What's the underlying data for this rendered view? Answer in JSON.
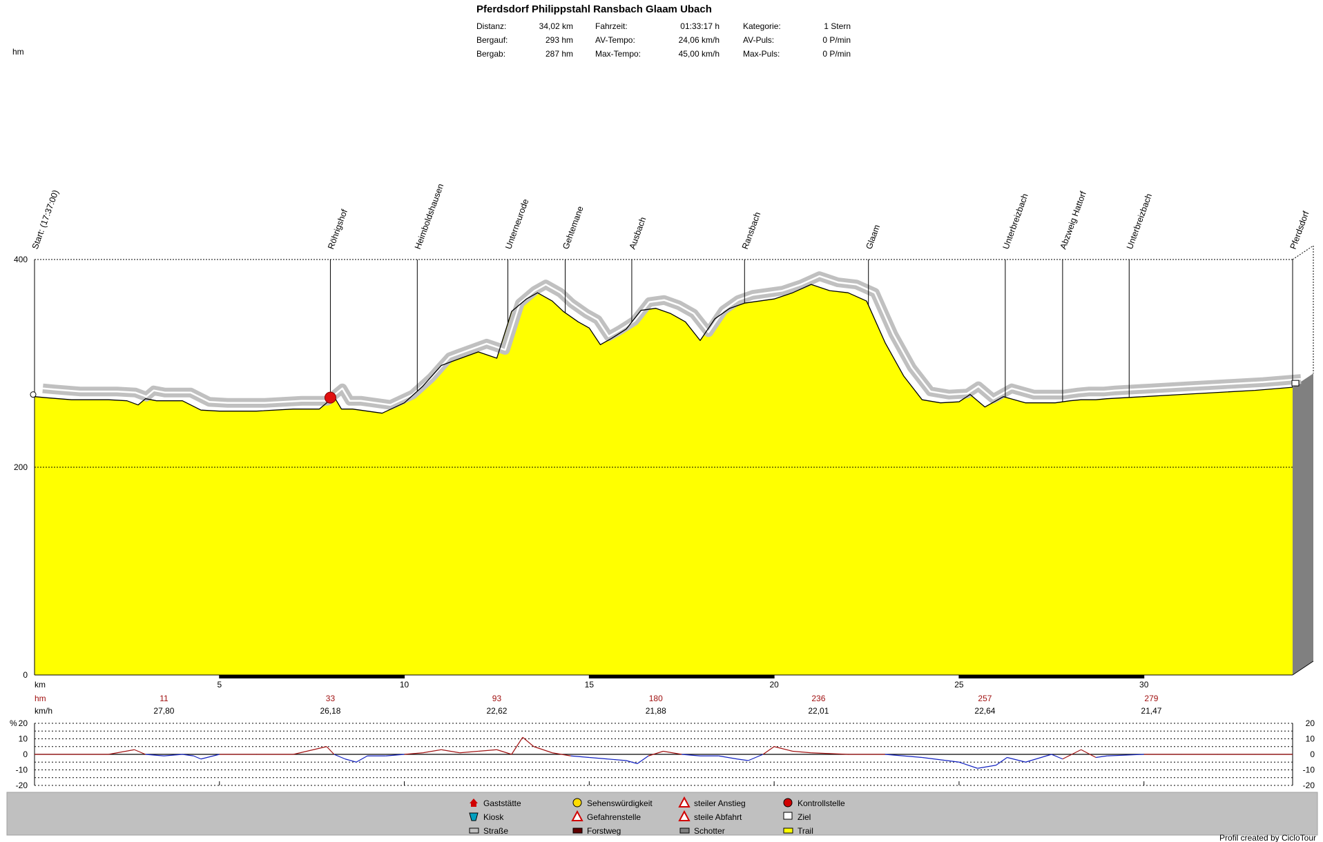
{
  "header": {
    "title": "Pferdsdorf Philippstahl Ransbach Glaam Ubach",
    "stats": [
      [
        "Distanz:",
        "34,02 km",
        "Fahrzeit:",
        "01:33:17 h",
        "Kategorie:",
        "1 Stern"
      ],
      [
        "Bergauf:",
        "293 hm",
        "AV-Tempo:",
        "24,06 km/h",
        "AV-Puls:",
        "0 P/min"
      ],
      [
        "Bergab:",
        "287 hm",
        "Max-Tempo:",
        "45,00 km/h",
        "Max-Puls:",
        "0 P/min"
      ]
    ]
  },
  "footer": {
    "credit": "Profil created by CicloTour"
  },
  "legend": [
    {
      "icon": "house-icon",
      "label": "Gaststätte",
      "color": "#d00000"
    },
    {
      "icon": "smiley-icon",
      "label": "Sehenswürdigkeit",
      "color": "#ffdd00"
    },
    {
      "icon": "steep-ascent-icon",
      "label": "steiler Anstieg",
      "color": "#d00000"
    },
    {
      "icon": "stop-sign-icon",
      "label": "Kontrollstelle",
      "color": "#d00000"
    },
    {
      "icon": "kiosk-icon",
      "label": "Kiosk",
      "color": "#00a0c0"
    },
    {
      "icon": "danger-icon",
      "label": "Gefahrenstelle",
      "color": "#d00000"
    },
    {
      "icon": "steep-descent-icon",
      "label": "steile Abfahrt",
      "color": "#d00000"
    },
    {
      "icon": "finish-flag-icon",
      "label": "Ziel",
      "color": "#000000"
    },
    {
      "icon": "road-swatch",
      "label": "Straße",
      "color": "#c0c0c0"
    },
    {
      "icon": "forest-road-swatch",
      "label": "Forstweg",
      "color": "#600000"
    },
    {
      "icon": "gravel-swatch",
      "label": "Schotter",
      "color": "#808080"
    },
    {
      "icon": "trail-swatch",
      "label": "Trail",
      "color": "#ffff00"
    }
  ],
  "chart_data": {
    "type": "area",
    "ylabel": "hm",
    "xlabel": "km",
    "xlim": [
      0,
      34.02
    ],
    "ylim": [
      0,
      400
    ],
    "x_ticks": [
      5,
      10,
      15,
      20,
      25,
      30
    ],
    "y_ticks": [
      0,
      200,
      400
    ],
    "fill_color": "#ffff00",
    "x": [
      0,
      0.3,
      1,
      2,
      2.5,
      2.8,
      3,
      3.3,
      4,
      4.5,
      5,
      6,
      7,
      7.7,
      8.1,
      8.3,
      8.6,
      9,
      9.4,
      10,
      10.5,
      11,
      11.3,
      12,
      12.5,
      12.9,
      13.3,
      13.6,
      14,
      14.3,
      14.7,
      15,
      15.3,
      15.6,
      16,
      16.4,
      16.8,
      17.2,
      17.6,
      18,
      18.4,
      18.8,
      19.2,
      19.6,
      20,
      20.5,
      21,
      21.5,
      22,
      22.5,
      23,
      23.5,
      24,
      24.5,
      25,
      25.3,
      25.7,
      26.2,
      26.8,
      27.2,
      27.6,
      28,
      28.3,
      28.7,
      29,
      30,
      31,
      32,
      33,
      34.02
    ],
    "elevation": [
      268,
      267,
      265,
      265,
      264,
      260,
      266,
      264,
      264,
      255,
      254,
      254,
      256,
      256,
      268,
      256,
      256,
      254,
      252,
      262,
      278,
      298,
      302,
      311,
      305,
      350,
      362,
      368,
      360,
      350,
      340,
      334,
      318,
      324,
      333,
      351,
      353,
      348,
      340,
      322,
      343,
      353,
      358,
      360,
      362,
      368,
      376,
      370,
      368,
      360,
      320,
      288,
      265,
      262,
      263,
      270,
      258,
      268,
      262,
      262,
      262,
      264,
      265,
      265,
      266,
      268,
      270,
      272,
      274,
      277
    ],
    "waypoints": [
      {
        "km": 0,
        "label": "Start: (17:37:00)"
      },
      {
        "km": 8,
        "label": "Röhrigshof"
      },
      {
        "km": 10.35,
        "label": "Heimboldshausen"
      },
      {
        "km": 12.8,
        "label": "Unterneurode"
      },
      {
        "km": 14.35,
        "label": "Gehtemane"
      },
      {
        "km": 16.15,
        "label": "Ausbach"
      },
      {
        "km": 19.2,
        "label": "Ransbach"
      },
      {
        "km": 22.55,
        "label": "Glaam"
      },
      {
        "km": 26.25,
        "label": "Unterbreizbach"
      },
      {
        "km": 27.8,
        "label": "Abzweig Hattorf"
      },
      {
        "km": 29.6,
        "label": "Unterbreizbach"
      },
      {
        "km": 34.02,
        "label": "Pferdsdorf"
      }
    ],
    "hm_row_label": "hm",
    "kmh_row_label": "km/h",
    "segments": [
      {
        "km": 3.5,
        "hm": "11",
        "kmh": "27,80"
      },
      {
        "km": 8,
        "hm": "33",
        "kmh": "26,18"
      },
      {
        "km": 12.5,
        "hm": "93",
        "kmh": "22,62"
      },
      {
        "km": 16.8,
        "hm": "180",
        "kmh": "21,88"
      },
      {
        "km": 21.2,
        "hm": "236",
        "kmh": "22,01"
      },
      {
        "km": 25.7,
        "hm": "257",
        "kmh": "22,64"
      },
      {
        "km": 30.2,
        "hm": "279",
        "kmh": "21,47"
      }
    ],
    "gradient": {
      "ylabel": "%",
      "ylim": [
        -20,
        20
      ],
      "y_ticks": [
        20,
        10,
        0,
        -10,
        -20
      ],
      "x": [
        0,
        2,
        2.7,
        3,
        3.5,
        4,
        4.3,
        4.5,
        5,
        6,
        7,
        7.9,
        8.1,
        8.4,
        8.7,
        9,
        9.5,
        10,
        10.5,
        11,
        11.5,
        12,
        12.5,
        12.9,
        13.2,
        13.5,
        14,
        14.5,
        15,
        15.5,
        16,
        16.3,
        16.6,
        17,
        17.5,
        18,
        18.5,
        19,
        19.3,
        19.7,
        20,
        20.5,
        21,
        22,
        23,
        24,
        25,
        25.5,
        26,
        26.3,
        26.8,
        27.5,
        27.8,
        28.3,
        28.7,
        29,
        30,
        31,
        32,
        33,
        34.02
      ],
      "values": [
        0,
        0,
        3,
        0,
        -1,
        0,
        -1,
        -3,
        0,
        0,
        0,
        5,
        0,
        -3,
        -5,
        -1,
        -1,
        0,
        1,
        3,
        1,
        2,
        3,
        0,
        11,
        5,
        1,
        -1,
        -2,
        -3,
        -4,
        -6,
        -1,
        2,
        0,
        -1,
        -1,
        -3,
        -4,
        0,
        5,
        2,
        1,
        0,
        0,
        -2,
        -5,
        -9,
        -7,
        -2,
        -5,
        0,
        -3,
        3,
        -2,
        -1,
        0,
        0,
        0,
        0,
        0
      ]
    }
  }
}
